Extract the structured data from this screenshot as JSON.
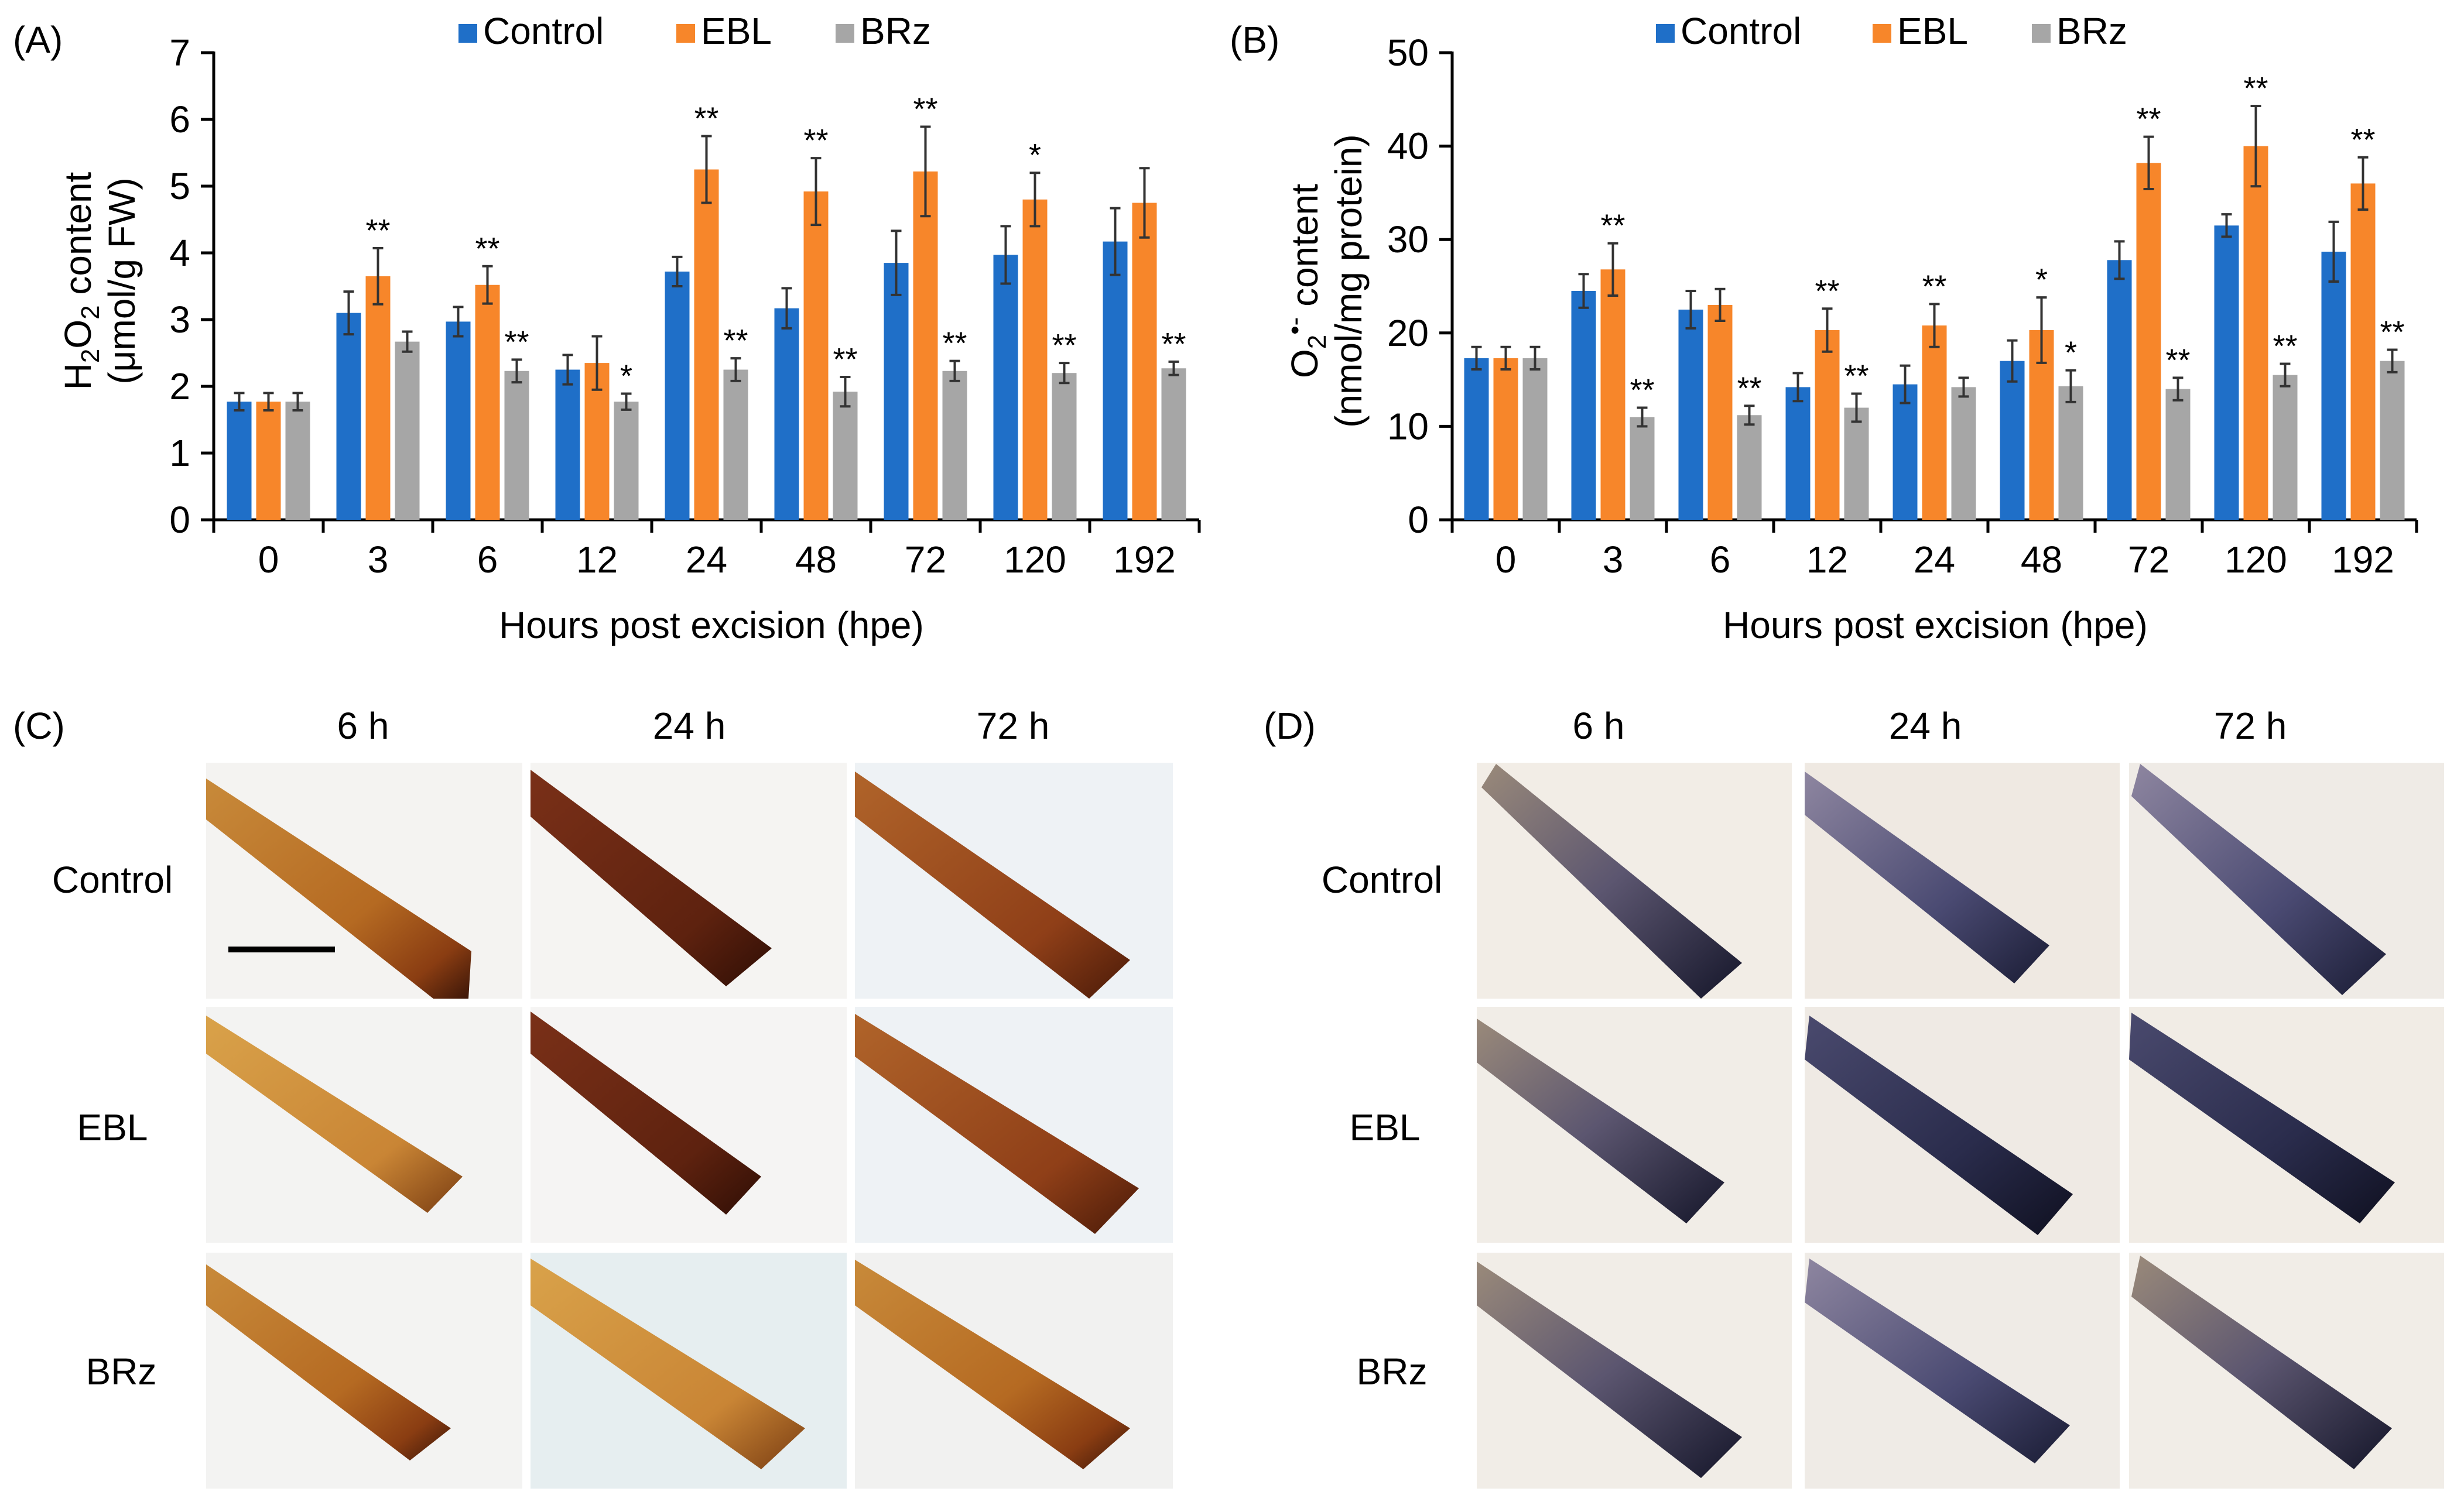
{
  "colors": {
    "control": "#1f6fc8",
    "ebl": "#f7862a",
    "brz": "#a6a6a6",
    "axis": "#000000"
  },
  "panel_labels": {
    "a": "(A)",
    "b": "(B)",
    "c": "(C)",
    "d": "(D)"
  },
  "chart_data": [
    {
      "type": "bar",
      "panel": "(A)",
      "categories": [
        "0",
        "3",
        "6",
        "12",
        "24",
        "48",
        "72",
        "120",
        "192"
      ],
      "xlabel": "Hours post excision (hpe)",
      "ylabel_line1_prefix": "H",
      "ylabel_line1_sub": "2",
      "ylabel_line1_mid": "O",
      "ylabel_line1_sub2": "2",
      "ylabel_line1_suffix": " content",
      "ylabel_line2": "(μmol/g FW)",
      "ylim": [
        0,
        7
      ],
      "yticks": [
        "0",
        "1",
        "2",
        "3",
        "4",
        "5",
        "6",
        "7"
      ],
      "legend_position": "top",
      "series": [
        {
          "name": "Control",
          "values": [
            1.77,
            3.1,
            2.97,
            2.25,
            3.72,
            3.17,
            3.85,
            3.97,
            4.17
          ],
          "errors": [
            0.13,
            0.32,
            0.22,
            0.22,
            0.22,
            0.3,
            0.48,
            0.43,
            0.5
          ],
          "marks": [
            "",
            "",
            "",
            "",
            "",
            "",
            "",
            "",
            ""
          ]
        },
        {
          "name": "EBL",
          "values": [
            1.77,
            3.65,
            3.52,
            2.35,
            5.25,
            4.92,
            5.22,
            4.8,
            4.75
          ],
          "errors": [
            0.13,
            0.42,
            0.28,
            0.4,
            0.5,
            0.5,
            0.67,
            0.4,
            0.52
          ],
          "marks": [
            "",
            "**",
            "**",
            "",
            "**",
            "**",
            "**",
            "*",
            ""
          ]
        },
        {
          "name": "BRz",
          "values": [
            1.77,
            2.67,
            2.23,
            1.77,
            2.25,
            1.92,
            2.23,
            2.2,
            2.27
          ],
          "errors": [
            0.13,
            0.15,
            0.17,
            0.12,
            0.17,
            0.22,
            0.15,
            0.15,
            0.1
          ],
          "marks": [
            "",
            "",
            "**",
            "*",
            "**",
            "**",
            "**",
            "**",
            "**"
          ]
        }
      ]
    },
    {
      "type": "bar",
      "panel": "(B)",
      "categories": [
        "0",
        "3",
        "6",
        "12",
        "24",
        "48",
        "72",
        "120",
        "192"
      ],
      "xlabel": "Hours post excision (hpe)",
      "ylabel_line1_prefix": "O",
      "ylabel_line1_sub": "2",
      "ylabel_line1_sup": "•-",
      "ylabel_line1_suffix": " content",
      "ylabel_line2": "(nmol/mg protein)",
      "ylim": [
        0,
        50
      ],
      "yticks": [
        "0",
        "10",
        "20",
        "30",
        "40",
        "50"
      ],
      "legend_position": "top",
      "series": [
        {
          "name": "Control",
          "values": [
            17.3,
            24.5,
            22.5,
            14.2,
            14.5,
            17.0,
            27.8,
            31.5,
            28.7
          ],
          "errors": [
            1.2,
            1.8,
            2.0,
            1.5,
            2.0,
            2.2,
            2.0,
            1.2,
            3.2
          ],
          "marks": [
            "",
            "",
            "",
            "",
            "",
            "",
            "",
            "",
            ""
          ]
        },
        {
          "name": "EBL",
          "values": [
            17.3,
            26.8,
            23.0,
            20.3,
            20.8,
            20.3,
            38.2,
            40.0,
            36.0
          ],
          "errors": [
            1.2,
            2.8,
            1.7,
            2.3,
            2.3,
            3.5,
            2.8,
            4.3,
            2.8
          ],
          "marks": [
            "",
            "**",
            "",
            "**",
            "**",
            "*",
            "**",
            "**",
            "**"
          ]
        },
        {
          "name": "BRz",
          "values": [
            17.3,
            11.0,
            11.2,
            12.0,
            14.2,
            14.3,
            14.0,
            15.5,
            17.0
          ],
          "errors": [
            1.2,
            1.0,
            1.0,
            1.5,
            1.0,
            1.7,
            1.2,
            1.2,
            1.2
          ],
          "marks": [
            "",
            "**",
            "**",
            "**",
            "",
            "*",
            "**",
            "**",
            "**"
          ]
        }
      ]
    }
  ],
  "photo_panels": {
    "c": {
      "columns": [
        "6 h",
        "24 h",
        "72 h"
      ],
      "rows": [
        "Control",
        "EBL",
        "BRz"
      ]
    },
    "d": {
      "columns": [
        "6 h",
        "24 h",
        "72 h"
      ],
      "rows": [
        "Control",
        "EBL",
        "BRz"
      ]
    }
  }
}
